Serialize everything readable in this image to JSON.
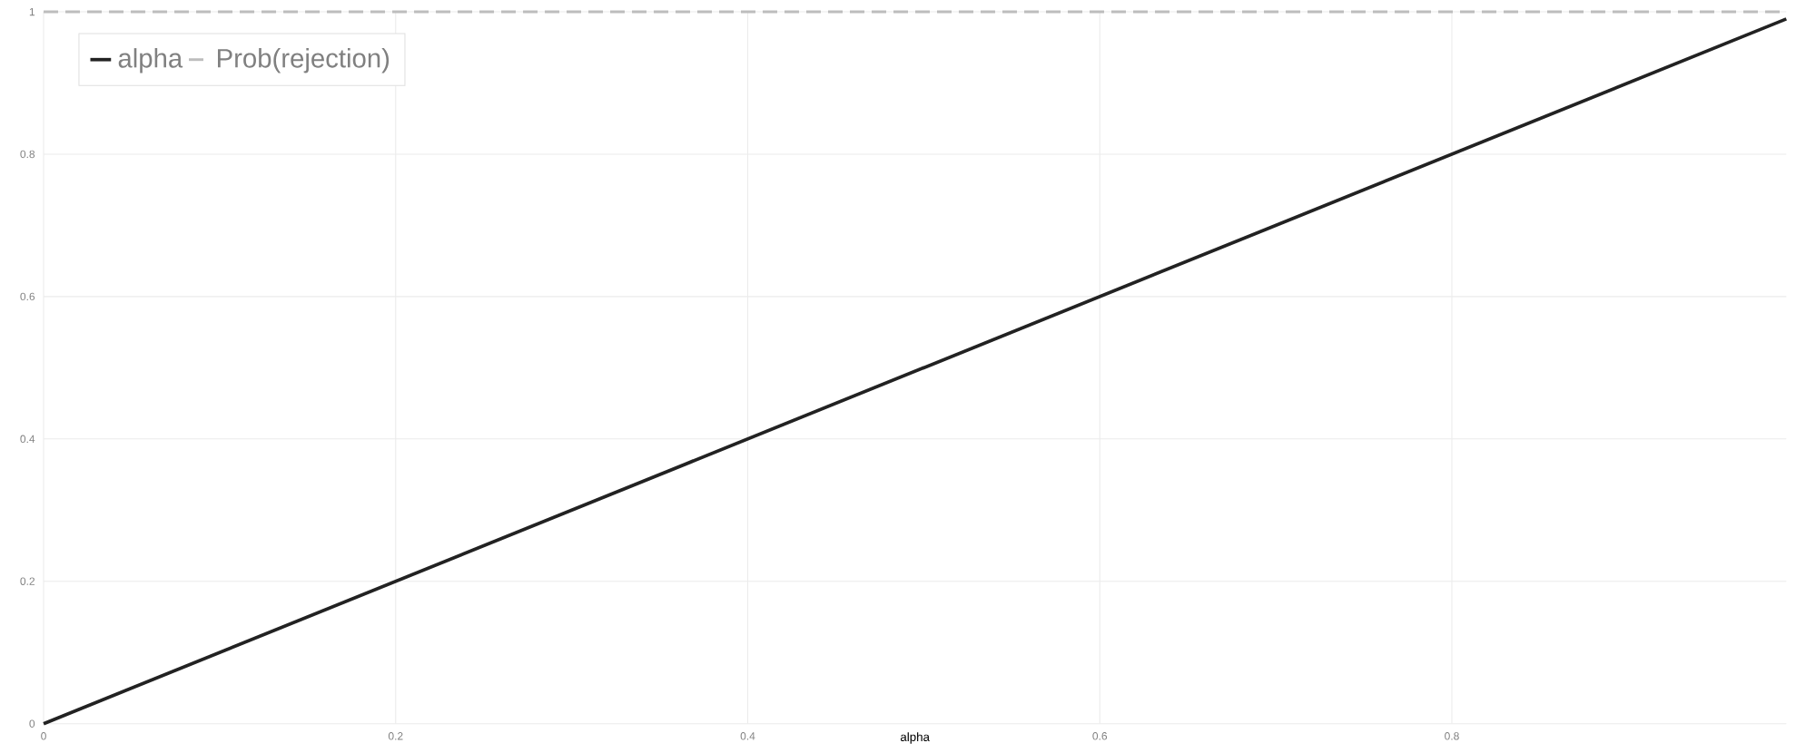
{
  "chart_data": {
    "type": "line",
    "xlabel": "alpha",
    "x": [
      0,
      0.99
    ],
    "series": [
      {
        "name": "alpha",
        "color": "#222222",
        "values": [
          0,
          0.99
        ],
        "line_style": "solid"
      },
      {
        "name": "Prob(rejection)",
        "color": "#bdbdbd",
        "values": [
          1,
          1
        ],
        "line_style": "dashed"
      }
    ],
    "xlim": [
      0,
      0.99
    ],
    "ylim": [
      0,
      1
    ],
    "xticks": [
      0,
      0.2,
      0.4,
      0.6,
      0.8
    ],
    "yticks": [
      0,
      0.2,
      0.4,
      0.6,
      0.8,
      1
    ],
    "grid": true,
    "legend": "top left",
    "marker": "none"
  }
}
